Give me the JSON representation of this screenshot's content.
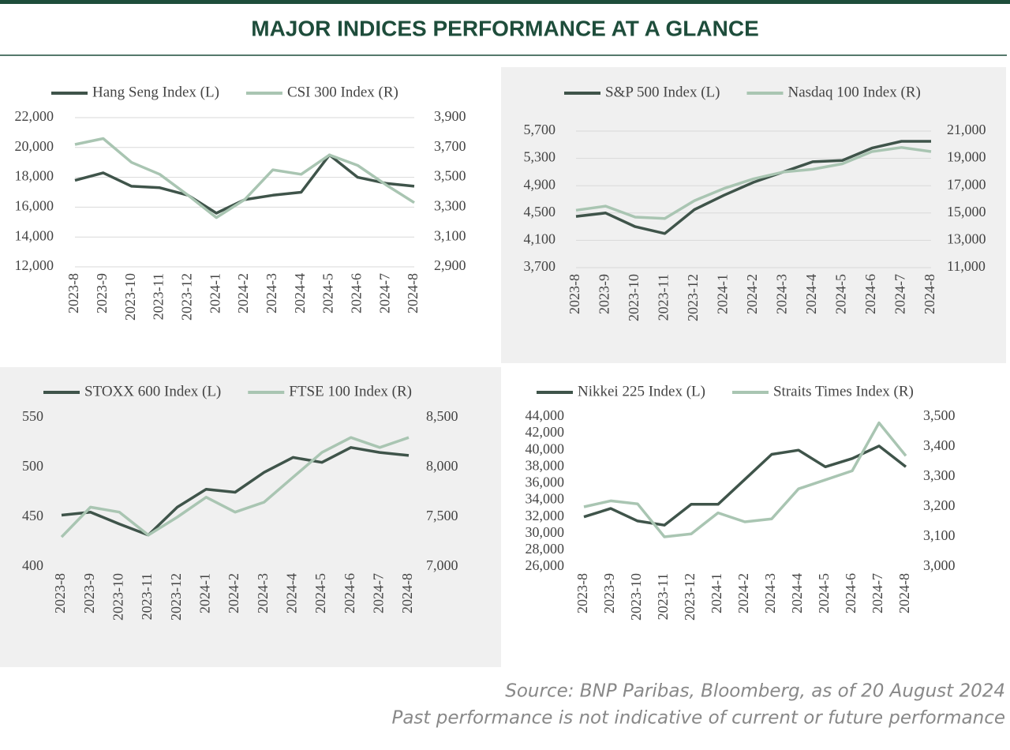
{
  "header": {
    "title": "MAJOR INDICES PERFORMANCE AT A GLANCE"
  },
  "footer": {
    "source": "Source: BNP Paribas, Bloomberg, as of 20 August 2024",
    "disclaimer": "Past performance is not indicative of current or future performance"
  },
  "chart_data": [
    {
      "type": "line",
      "categories": [
        "2023-8",
        "2023-9",
        "2023-10",
        "2023-11",
        "2023-12",
        "2024-1",
        "2024-2",
        "2024-3",
        "2024-4",
        "2024-5",
        "2024-6",
        "2024-7",
        "2024-8"
      ],
      "series": [
        {
          "name": "Hang Seng Index (L)",
          "color": "#3f544a",
          "axis": "y",
          "values": [
            17800,
            18300,
            17400,
            17300,
            16800,
            15600,
            16500,
            16800,
            17000,
            19500,
            18000,
            17600,
            17400
          ]
        },
        {
          "name": "CSI 300 Index (R)",
          "color": "#a9c5b2",
          "axis": "y2",
          "values": [
            3720,
            3760,
            3600,
            3520,
            3380,
            3230,
            3350,
            3550,
            3520,
            3650,
            3580,
            3450,
            3330
          ]
        }
      ],
      "ylim": [
        12000,
        22000
      ],
      "yticks": [
        {
          "value": 12000,
          "label": "12,000"
        },
        {
          "value": 14000,
          "label": "14,000"
        },
        {
          "value": 16000,
          "label": "16,000"
        },
        {
          "value": 18000,
          "label": "18,000"
        },
        {
          "value": 20000,
          "label": "20,000"
        },
        {
          "value": 22000,
          "label": "22,000"
        }
      ],
      "y2lim": [
        2900,
        3900
      ],
      "y2ticks": [
        {
          "value": 2900,
          "label": "2,900"
        },
        {
          "value": 3100,
          "label": "3,100"
        },
        {
          "value": 3300,
          "label": "3,300"
        },
        {
          "value": 3500,
          "label": "3,500"
        },
        {
          "value": 3700,
          "label": "3,700"
        },
        {
          "value": 3900,
          "label": "3,900"
        }
      ],
      "grid": true
    },
    {
      "type": "line",
      "categories": [
        "2023-8",
        "2023-9",
        "2023-10",
        "2023-11",
        "2023-12",
        "2024-1",
        "2024-2",
        "2024-3",
        "2024-4",
        "2024-5",
        "2024-6",
        "2024-7",
        "2024-8"
      ],
      "series": [
        {
          "name": "S&P 500 Index (L)",
          "color": "#3f544a",
          "axis": "y",
          "values": [
            4450,
            4500,
            4300,
            4200,
            4550,
            4760,
            4950,
            5100,
            5250,
            5270,
            5450,
            5550,
            5550
          ]
        },
        {
          "name": "Nasdaq 100 Index (R)",
          "color": "#a9c5b2",
          "axis": "y2",
          "values": [
            15200,
            15500,
            14700,
            14600,
            15900,
            16800,
            17500,
            18000,
            18200,
            18600,
            19500,
            19800,
            19500
          ]
        }
      ],
      "ylim": [
        3700,
        5700
      ],
      "yticks": [
        {
          "value": 3700,
          "label": "3,700"
        },
        {
          "value": 4100,
          "label": "4,100"
        },
        {
          "value": 4500,
          "label": "4,500"
        },
        {
          "value": 4900,
          "label": "4,900"
        },
        {
          "value": 5300,
          "label": "5,300"
        },
        {
          "value": 5700,
          "label": "5,700"
        }
      ],
      "y2lim": [
        11000,
        21000
      ],
      "y2ticks": [
        {
          "value": 11000,
          "label": "11,000"
        },
        {
          "value": 13000,
          "label": "13,000"
        },
        {
          "value": 15000,
          "label": "15,000"
        },
        {
          "value": 17000,
          "label": "17,000"
        },
        {
          "value": 19000,
          "label": "19,000"
        },
        {
          "value": 21000,
          "label": "21,000"
        }
      ],
      "grid": true
    },
    {
      "type": "line",
      "categories": [
        "2023-8",
        "2023-9",
        "2023-10",
        "2023-11",
        "2023-12",
        "2024-1",
        "2024-2",
        "2024-3",
        "2024-4",
        "2024-5",
        "2024-6",
        "2024-7",
        "2024-8"
      ],
      "series": [
        {
          "name": "STOXX 600 Index (L)",
          "color": "#3f544a",
          "axis": "y",
          "values": [
            452,
            455,
            443,
            432,
            460,
            478,
            475,
            495,
            510,
            505,
            520,
            515,
            512
          ]
        },
        {
          "name": "FTSE 100 Index (R)",
          "color": "#a9c5b2",
          "axis": "y2",
          "values": [
            7300,
            7600,
            7550,
            7320,
            7500,
            7700,
            7550,
            7650,
            7900,
            8150,
            8300,
            8200,
            8300
          ]
        }
      ],
      "ylim": [
        400,
        550
      ],
      "yticks": [
        400,
        450,
        500,
        550
      ],
      "y2lim": [
        7000,
        8500
      ],
      "y2ticks": [
        {
          "value": 7000,
          "label": "7,000"
        },
        {
          "value": 7500,
          "label": "7,500"
        },
        {
          "value": 8000,
          "label": "8,000"
        },
        {
          "value": 8500,
          "label": "8,500"
        }
      ],
      "grid": false
    },
    {
      "type": "line",
      "categories": [
        "2023-8",
        "2023-9",
        "2023-10",
        "2023-11",
        "2023-12",
        "2024-1",
        "2024-2",
        "2024-3",
        "2024-4",
        "2024-5",
        "2024-6",
        "2024-7",
        "2024-8"
      ],
      "series": [
        {
          "name": "Nikkei 225 Index (L)",
          "color": "#3f544a",
          "axis": "y",
          "values": [
            32000,
            33000,
            31500,
            31000,
            33500,
            33500,
            36500,
            39500,
            40000,
            38000,
            39000,
            40500,
            38000
          ]
        },
        {
          "name": "Straits Times Index (R)",
          "color": "#a9c5b2",
          "axis": "y2",
          "values": [
            3200,
            3220,
            3210,
            3100,
            3110,
            3180,
            3150,
            3160,
            3260,
            3290,
            3320,
            3480,
            3370
          ]
        }
      ],
      "ylim": [
        26000,
        44000
      ],
      "yticks": [
        {
          "value": 26000,
          "label": "26,000"
        },
        {
          "value": 28000,
          "label": "28,000"
        },
        {
          "value": 30000,
          "label": "30,000"
        },
        {
          "value": 32000,
          "label": "32,000"
        },
        {
          "value": 34000,
          "label": "34,000"
        },
        {
          "value": 36000,
          "label": "36,000"
        },
        {
          "value": 38000,
          "label": "38,000"
        },
        {
          "value": 40000,
          "label": "40,000"
        },
        {
          "value": 42000,
          "label": "42,000"
        },
        {
          "value": 44000,
          "label": "44,000"
        }
      ],
      "y2lim": [
        3000,
        3500
      ],
      "y2ticks": [
        {
          "value": 3000,
          "label": "3,000"
        },
        {
          "value": 3100,
          "label": "3,100"
        },
        {
          "value": 3200,
          "label": "3,200"
        },
        {
          "value": 3300,
          "label": "3,300"
        },
        {
          "value": 3400,
          "label": "3,400"
        },
        {
          "value": 3500,
          "label": "3,500"
        }
      ],
      "grid": false
    }
  ]
}
